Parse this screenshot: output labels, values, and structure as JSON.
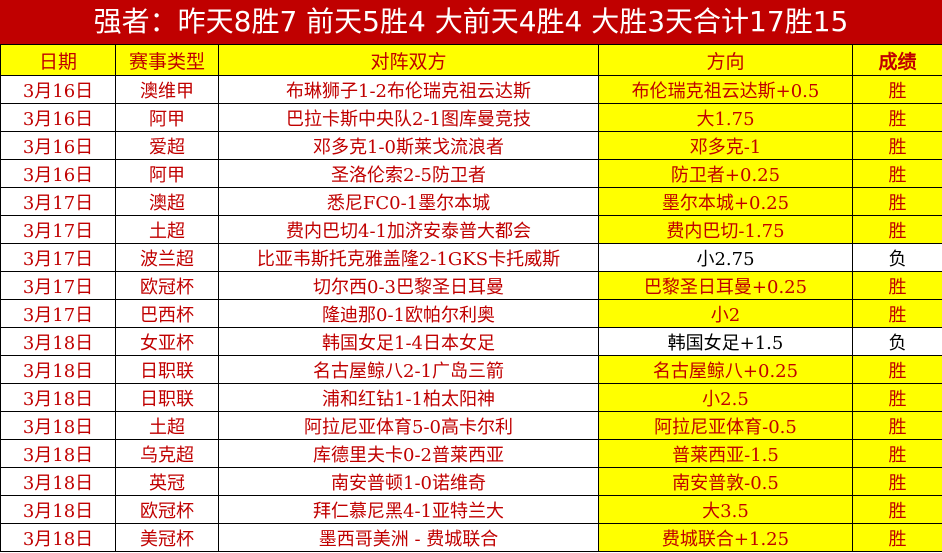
{
  "title": "强者：昨天8胜7 前天5胜4 大前天4胜4 大胜3天合计17胜15",
  "colors": {
    "title_bg": "#c00000",
    "highlight": "#ffff00",
    "text": "#c00000"
  },
  "headers": [
    "日期",
    "赛事类型",
    "对阵双方",
    "方向",
    "成绩"
  ],
  "rows": [
    [
      "3月16日",
      "澳维甲",
      "布琳狮子1-2布伦瑞克祖云达斯",
      "布伦瑞克祖云达斯+0.5",
      "胜"
    ],
    [
      "3月16日",
      "阿甲",
      "巴拉卡斯中央队2-1图库曼竞技",
      "大1.75",
      "胜"
    ],
    [
      "3月16日",
      "爱超",
      "邓多克1-0斯莱戈流浪者",
      "邓多克-1",
      "胜"
    ],
    [
      "3月16日",
      "阿甲",
      "圣洛伦索2-5防卫者",
      "防卫者+0.25",
      "胜"
    ],
    [
      "3月17日",
      "澳超",
      "悉尼FC0-1墨尔本城",
      "墨尔本城+0.25",
      "胜"
    ],
    [
      "3月17日",
      "土超",
      "费内巴切4-1加济安泰普大都会",
      "费内巴切-1.75",
      "胜"
    ],
    [
      "3月17日",
      "波兰超",
      "比亚韦斯托克雅盖隆2-1GKS卡托威斯",
      "小2.75",
      "负"
    ],
    [
      "3月17日",
      "欧冠杯",
      "切尔西0-3巴黎圣日耳曼",
      "巴黎圣日耳曼+0.25",
      "胜"
    ],
    [
      "3月17日",
      "巴西杯",
      "隆迪那0-1欧帕尔利奥",
      "小2",
      "胜"
    ],
    [
      "3月18日",
      "女亚杯",
      "韩国女足1-4日本女足",
      "韩国女足+1.5",
      "负"
    ],
    [
      "3月18日",
      "日职联",
      "名古屋鲸八2-1广岛三箭",
      "名古屋鲸八+0.25",
      "胜"
    ],
    [
      "3月18日",
      "日职联",
      "浦和红钻1-1柏太阳神",
      "小2.5",
      "胜"
    ],
    [
      "3月18日",
      "土超",
      "阿拉尼亚体育5-0高卡尔利",
      "阿拉尼亚体育-0.5",
      "胜"
    ],
    [
      "3月18日",
      "乌克超",
      "库德里夫卡0-2普莱西亚",
      "普莱西亚-1.5",
      "胜"
    ],
    [
      "3月18日",
      "英冠",
      "南安普顿1-0诺维奇",
      "南安普敦-0.5",
      "胜"
    ],
    [
      "3月18日",
      "欧冠杯",
      "拜仁慕尼黑4-1亚特兰大",
      "大3.5",
      "胜"
    ],
    [
      "3月18日",
      "美冠杯",
      "墨西哥美洲 - 费城联合",
      "费城联合+1.25",
      "胜"
    ]
  ]
}
